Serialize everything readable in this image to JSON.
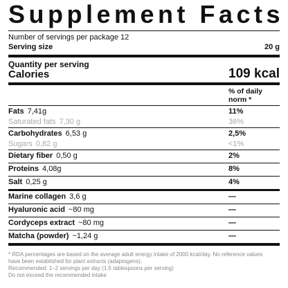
{
  "header": {
    "title": "Supplement Facts",
    "servings": "Number of servings per package 12",
    "serving_size_label": "Serving size",
    "serving_size_value": "20 g",
    "quantity_label": "Quantity per serving",
    "calories_label": "Calories",
    "calories_value": "109 kcal",
    "daily_header": "% of daily norm *"
  },
  "rows": [
    {
      "name": "Fats",
      "amount": "7,41g",
      "daily": "11%",
      "sub": {
        "name": "Saturated fats",
        "amount": "7,30 g",
        "daily": "36%"
      }
    },
    {
      "name": "Carbohydrates",
      "amount": "6,53 g",
      "daily": "2,5%",
      "sub": {
        "name": "Sugars",
        "amount": "0,82 g",
        "daily": "<1%"
      }
    },
    {
      "name": "Dietary fiber",
      "amount": "0,50 g",
      "daily": "2%"
    },
    {
      "name": "Proteins",
      "amount": "4,08g",
      "daily": "8%"
    },
    {
      "name": "Salt",
      "amount": "0,25 g",
      "daily": "4%"
    },
    {
      "name": "Marine collagen",
      "amount": "3,6 g",
      "daily": "—"
    },
    {
      "name": "Hyaluronic acid",
      "amount": "~80 mg",
      "daily": "—"
    },
    {
      "name": "Cordyceps extract",
      "amount": "~80 mg",
      "daily": "—"
    },
    {
      "name": "Matcha (powder)",
      "amount": "~1,24 g",
      "daily": "—"
    }
  ],
  "footnotes": [
    "* RDA percentages are based on the average adult energy intake of 2000 kcal/day. No reference values",
    "have been established for plant extracts (adaptogens).",
    "Recommended: 1–2 servings per day (1.5 tablespoons per serving)",
    "Do not exceed the recommended intake"
  ]
}
